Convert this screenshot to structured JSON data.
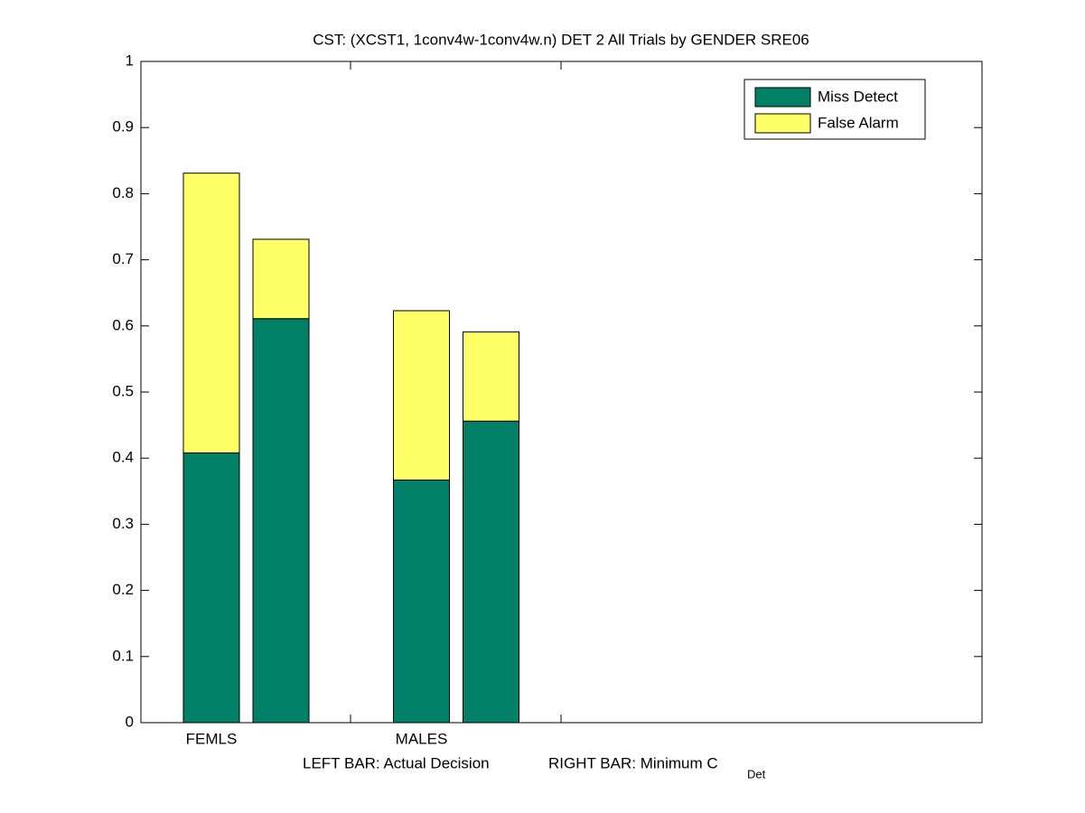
{
  "chart_data": {
    "type": "stacked-bar",
    "title": "CST: (XCST1, 1conv4w-1conv4w.n) DET 2 All Trials by GENDER SRE06",
    "xlabel": [
      "LEFT BAR: Actual Decision",
      "RIGHT BAR: Minimum C",
      "Det"
    ],
    "categories": [
      "FEMLS",
      null,
      "MALES",
      null
    ],
    "series": [
      {
        "name": "Miss Detect",
        "color": "#008066",
        "values": [
          0.408,
          0.611,
          0.367,
          0.456
        ]
      },
      {
        "name": "False Alarm",
        "color": "#ffff66",
        "values": [
          0.423,
          0.12,
          0.256,
          0.135
        ]
      }
    ],
    "ylim": [
      0,
      1
    ],
    "yticks": [
      0,
      0.1,
      0.2,
      0.3,
      0.4,
      0.5,
      0.6,
      0.7,
      0.8,
      0.9,
      1
    ],
    "grid": false,
    "legend": "upper right"
  }
}
